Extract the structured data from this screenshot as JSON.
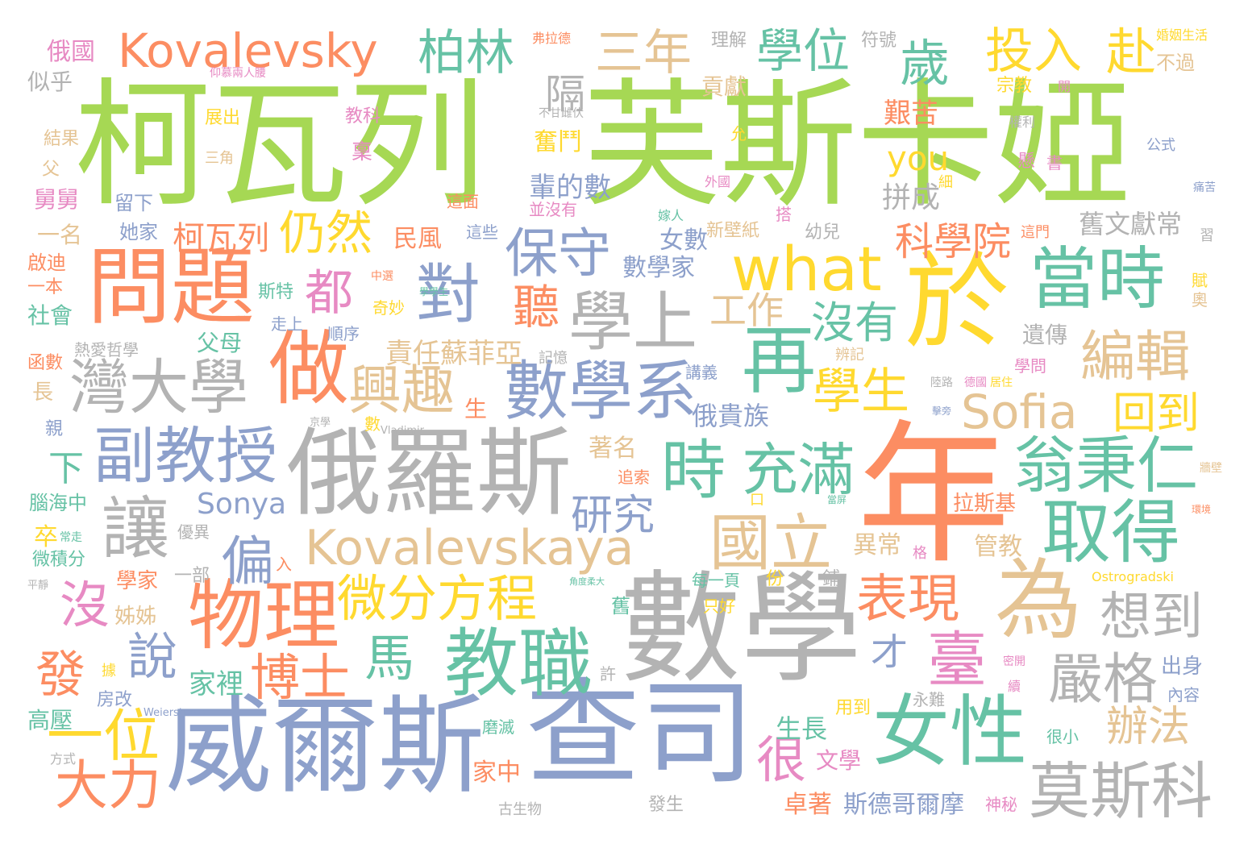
{
  "palette": {
    "green": "#a6d854",
    "orange": "#fc8d62",
    "blue": "#8da0cb",
    "gray": "#b3b3b3",
    "teal": "#66c2a5",
    "yellow": "#ffd92f",
    "tan": "#e5c494",
    "pink": "#e78ac3"
  },
  "words": [
    {
      "text": "柯瓦列",
      "color": "green"
    },
    {
      "text": "芙斯卡婭",
      "color": "green"
    },
    {
      "text": "年",
      "color": "orange"
    },
    {
      "text": "數學",
      "color": "gray"
    },
    {
      "text": "威爾斯",
      "color": "blue"
    },
    {
      "text": "查司",
      "color": "blue"
    },
    {
      "text": "俄羅斯",
      "color": "gray"
    },
    {
      "text": "女性",
      "color": "teal"
    },
    {
      "text": "於",
      "color": "yellow"
    },
    {
      "text": "問題",
      "color": "orange"
    },
    {
      "text": "Kovalevsky",
      "color": "orange"
    },
    {
      "text": "Kovalevskaya",
      "color": "tan"
    },
    {
      "text": "what",
      "color": "yellow"
    },
    {
      "text": "當時",
      "color": "teal"
    },
    {
      "text": "再",
      "color": "teal"
    },
    {
      "text": "做",
      "color": "orange"
    },
    {
      "text": "為",
      "color": "tan"
    },
    {
      "text": "教職",
      "color": "teal"
    },
    {
      "text": "物理",
      "color": "orange"
    },
    {
      "text": "學上",
      "color": "gray"
    },
    {
      "text": "取得",
      "color": "teal"
    },
    {
      "text": "數學系",
      "color": "blue"
    },
    {
      "text": "灣大學",
      "color": "gray"
    },
    {
      "text": "副教授",
      "color": "blue"
    },
    {
      "text": "翁秉仁",
      "color": "teal"
    },
    {
      "text": "莫斯科",
      "color": "gray"
    },
    {
      "text": "Sofia",
      "color": "tan"
    },
    {
      "text": "時",
      "color": "teal"
    },
    {
      "text": "充滿",
      "color": "teal"
    },
    {
      "text": "國立",
      "color": "tan"
    },
    {
      "text": "讓",
      "color": "gray"
    },
    {
      "text": "對",
      "color": "blue"
    },
    {
      "text": "保守",
      "color": "blue"
    },
    {
      "text": "柏林",
      "color": "teal"
    },
    {
      "text": "三年",
      "color": "tan"
    },
    {
      "text": "學位",
      "color": "teal"
    },
    {
      "text": "歲",
      "color": "teal"
    },
    {
      "text": "投入",
      "color": "yellow"
    },
    {
      "text": "赴",
      "color": "yellow"
    },
    {
      "text": "興趣",
      "color": "tan"
    },
    {
      "text": "編輯",
      "color": "tan"
    },
    {
      "text": "微分方程",
      "color": "yellow"
    },
    {
      "text": "一位",
      "color": "yellow"
    },
    {
      "text": "大力",
      "color": "orange"
    },
    {
      "text": "臺",
      "color": "pink"
    },
    {
      "text": "想到",
      "color": "gray"
    },
    {
      "text": "嚴格",
      "color": "gray"
    },
    {
      "text": "表現",
      "color": "orange"
    },
    {
      "text": "仍然",
      "color": "yellow"
    },
    {
      "text": "都",
      "color": "pink"
    },
    {
      "text": "聽",
      "color": "orange"
    },
    {
      "text": "偏",
      "color": "blue"
    },
    {
      "text": "馬",
      "color": "teal"
    },
    {
      "text": "博士",
      "color": "orange"
    },
    {
      "text": "說",
      "color": "blue"
    },
    {
      "text": "發",
      "color": "orange"
    },
    {
      "text": "沒",
      "color": "pink"
    },
    {
      "text": "很",
      "color": "pink"
    },
    {
      "text": "學生",
      "color": "yellow"
    },
    {
      "text": "沒有",
      "color": "teal"
    },
    {
      "text": "回到",
      "color": "yellow"
    },
    {
      "text": "科學院",
      "color": "orange"
    },
    {
      "text": "you",
      "color": "yellow"
    },
    {
      "text": "辦法",
      "color": "tan"
    },
    {
      "text": "研究",
      "color": "blue"
    },
    {
      "text": "工作",
      "color": "tan"
    },
    {
      "text": "隔",
      "color": "gray"
    },
    {
      "text": "下",
      "color": "teal"
    },
    {
      "text": "Sonya",
      "color": "blue"
    },
    {
      "text": "柯瓦列",
      "color": "orange"
    },
    {
      "text": "才",
      "color": "blue"
    },
    {
      "text": "拼成",
      "color": "gray"
    },
    {
      "text": "艱苦",
      "color": "orange"
    },
    {
      "text": "輩的數",
      "color": "blue"
    },
    {
      "text": "責任蘇菲亞",
      "color": "tan"
    },
    {
      "text": "俄貴族",
      "color": "blue"
    },
    {
      "text": "舊文獻常",
      "color": "gray"
    },
    {
      "text": "家裡",
      "color": "teal"
    },
    {
      "text": "生長",
      "color": "teal"
    },
    {
      "text": "文學",
      "color": "pink"
    },
    {
      "text": "卓著",
      "color": "orange"
    },
    {
      "text": "斯德哥爾摩",
      "color": "blue"
    },
    {
      "text": "家中",
      "color": "orange"
    },
    {
      "text": "著名",
      "color": "tan"
    },
    {
      "text": "數學家",
      "color": "blue"
    },
    {
      "text": "女數",
      "color": "blue"
    },
    {
      "text": "民風",
      "color": "orange"
    },
    {
      "text": "拉斯基",
      "color": "orange"
    },
    {
      "text": "管教",
      "color": "tan"
    },
    {
      "text": "異常",
      "color": "tan"
    },
    {
      "text": "貢獻",
      "color": "tan"
    },
    {
      "text": "理解",
      "color": "gray"
    },
    {
      "text": "符號",
      "color": "gray"
    },
    {
      "text": "俄國",
      "color": "pink"
    },
    {
      "text": "似乎",
      "color": "gray"
    },
    {
      "text": "舅舅",
      "color": "pink"
    },
    {
      "text": "一名",
      "color": "tan"
    },
    {
      "text": "她家",
      "color": "blue"
    },
    {
      "text": "啟迪",
      "color": "orange"
    },
    {
      "text": "一本",
      "color": "orange"
    },
    {
      "text": "社會",
      "color": "teal"
    },
    {
      "text": "高壓",
      "color": "teal"
    },
    {
      "text": "長",
      "color": "tan"
    },
    {
      "text": "卒",
      "color": "yellow"
    },
    {
      "text": "腦海中",
      "color": "teal"
    },
    {
      "text": "微積分",
      "color": "teal"
    },
    {
      "text": "學家",
      "color": "orange"
    },
    {
      "text": "姊姊",
      "color": "tan"
    },
    {
      "text": "房改",
      "color": "blue"
    },
    {
      "text": "父母",
      "color": "teal"
    },
    {
      "text": "斯特",
      "color": "teal"
    },
    {
      "text": "熱愛哲學",
      "color": "gray"
    },
    {
      "text": "函數",
      "color": "orange"
    },
    {
      "text": "奮鬥",
      "color": "yellow"
    },
    {
      "text": "稟",
      "color": "pink"
    },
    {
      "text": "展出",
      "color": "yellow"
    },
    {
      "text": "結果",
      "color": "tan"
    },
    {
      "text": "三角",
      "color": "tan"
    },
    {
      "text": "留下",
      "color": "blue"
    },
    {
      "text": "教科",
      "color": "pink"
    },
    {
      "text": "並沒有",
      "color": "pink"
    },
    {
      "text": "這面",
      "color": "orange"
    },
    {
      "text": "這些",
      "color": "blue"
    },
    {
      "text": "新壁紙",
      "color": "tan"
    },
    {
      "text": "幼兒",
      "color": "gray"
    },
    {
      "text": "婚姻生活",
      "color": "yellow"
    },
    {
      "text": "不過",
      "color": "tan"
    },
    {
      "text": "宗教",
      "color": "yellow"
    },
    {
      "text": "公式",
      "color": "blue"
    },
    {
      "text": "出身",
      "color": "blue"
    },
    {
      "text": "內容",
      "color": "blue"
    },
    {
      "text": "學問",
      "color": "pink"
    },
    {
      "text": "遺傳",
      "color": "gray"
    },
    {
      "text": "賦",
      "color": "yellow"
    },
    {
      "text": "奧",
      "color": "tan"
    },
    {
      "text": "用到",
      "color": "yellow"
    },
    {
      "text": "永難",
      "color": "gray"
    },
    {
      "text": "很小",
      "color": "teal"
    },
    {
      "text": "神秘",
      "color": "pink"
    },
    {
      "text": "追索",
      "color": "orange"
    },
    {
      "text": "優異",
      "color": "gray"
    },
    {
      "text": "一部",
      "color": "gray"
    },
    {
      "text": "每一頁",
      "color": "teal"
    },
    {
      "text": "只好",
      "color": "yellow"
    },
    {
      "text": "發生",
      "color": "gray"
    },
    {
      "text": "古生物",
      "color": "gray"
    },
    {
      "text": "磨滅",
      "color": "teal"
    },
    {
      "text": "許",
      "color": "gray"
    },
    {
      "text": "舊",
      "color": "teal"
    },
    {
      "text": "走上",
      "color": "blue"
    },
    {
      "text": "順序",
      "color": "blue"
    },
    {
      "text": "奇妙",
      "color": "yellow"
    },
    {
      "text": "記憶",
      "color": "gray"
    },
    {
      "text": "講義",
      "color": "blue"
    },
    {
      "text": "辨記",
      "color": "tan"
    },
    {
      "text": "生",
      "color": "orange"
    },
    {
      "text": "數",
      "color": "yellow"
    },
    {
      "text": "方式",
      "color": "gray"
    },
    {
      "text": "父",
      "color": "tan"
    },
    {
      "text": "親",
      "color": "blue"
    },
    {
      "text": "Weierstrass",
      "color": "blue"
    },
    {
      "text": "Ostrogradski",
      "color": "yellow"
    },
    {
      "text": "Vladimir",
      "color": "gray"
    },
    {
      "text": "弗拉德",
      "color": "orange"
    },
    {
      "text": "仰慕兩人腰",
      "color": "pink"
    },
    {
      "text": "不甘雌伏",
      "color": "gray"
    },
    {
      "text": "開",
      "color": "pink"
    },
    {
      "text": "權利",
      "color": "gray"
    },
    {
      "text": "懸",
      "color": "pink"
    },
    {
      "text": "書",
      "color": "pink"
    },
    {
      "text": "痛苦",
      "color": "blue"
    },
    {
      "text": "細",
      "color": "yellow"
    },
    {
      "text": "外國",
      "color": "pink"
    },
    {
      "text": "嫁人",
      "color": "teal"
    },
    {
      "text": "這門",
      "color": "orange"
    },
    {
      "text": "習",
      "color": "gray"
    },
    {
      "text": "搭",
      "color": "pink"
    },
    {
      "text": "中選",
      "color": "orange"
    },
    {
      "text": "學學生",
      "color": "teal"
    },
    {
      "text": "京學",
      "color": "gray"
    },
    {
      "text": "陸路",
      "color": "gray"
    },
    {
      "text": "德國",
      "color": "pink"
    },
    {
      "text": "居住",
      "color": "yellow"
    },
    {
      "text": "擊旁",
      "color": "blue"
    },
    {
      "text": "牆壁",
      "color": "tan"
    },
    {
      "text": "當屏",
      "color": "teal"
    },
    {
      "text": "環境",
      "color": "orange"
    },
    {
      "text": "格",
      "color": "pink"
    },
    {
      "text": "份",
      "color": "yellow"
    },
    {
      "text": "鋪",
      "color": "gray"
    },
    {
      "text": "角度柔大",
      "color": "teal"
    },
    {
      "text": "入",
      "color": "orange"
    },
    {
      "text": "平靜",
      "color": "gray"
    },
    {
      "text": "常走",
      "color": "teal"
    },
    {
      "text": "據",
      "color": "yellow"
    },
    {
      "text": "密開",
      "color": "pink"
    },
    {
      "text": "續",
      "color": "pink"
    },
    {
      "text": "允",
      "color": "yellow"
    },
    {
      "text": "口",
      "color": "yellow"
    }
  ]
}
